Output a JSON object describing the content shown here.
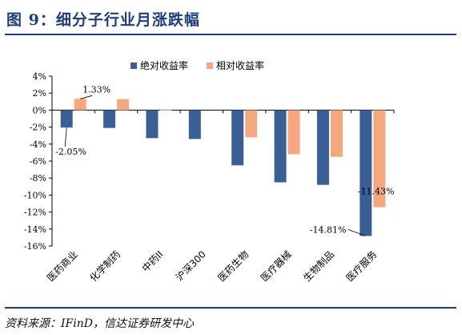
{
  "figure": {
    "title": "图 9：细分子行业月涨跌幅",
    "source": "资料来源：IFinD，信达证券研发中心"
  },
  "chart_data": {
    "type": "bar",
    "categories": [
      "医药商业",
      "化学制药",
      "中药II",
      "沪深300",
      "医药生物",
      "医疗器械",
      "生物制品",
      "医疗服务"
    ],
    "series": [
      {
        "name": "绝对收益率",
        "color": "#3a5f96",
        "values": [
          -2.05,
          -2.1,
          -3.3,
          -3.4,
          -6.5,
          -8.5,
          -8.8,
          -14.81
        ]
      },
      {
        "name": "相对收益率",
        "color": "#f5a77f",
        "values": [
          1.33,
          1.3,
          0.05,
          0,
          -3.2,
          -5.2,
          -5.5,
          -11.43
        ]
      }
    ],
    "yticks": [
      "4%",
      "2%",
      "0%",
      "-2%",
      "-4%",
      "-6%",
      "-8%",
      "-10%",
      "-12%",
      "-14%",
      "-16%"
    ],
    "ylim": [
      -16,
      4
    ],
    "data_labels": [
      {
        "series": 1,
        "index": 0,
        "text": "1.33%"
      },
      {
        "series": 0,
        "index": 0,
        "text": "-2.05%"
      },
      {
        "series": 0,
        "index": 7,
        "text": "-14.81%"
      },
      {
        "series": 1,
        "index": 7,
        "text": "-11.43%"
      }
    ],
    "legend_position": "top",
    "grid": false
  }
}
